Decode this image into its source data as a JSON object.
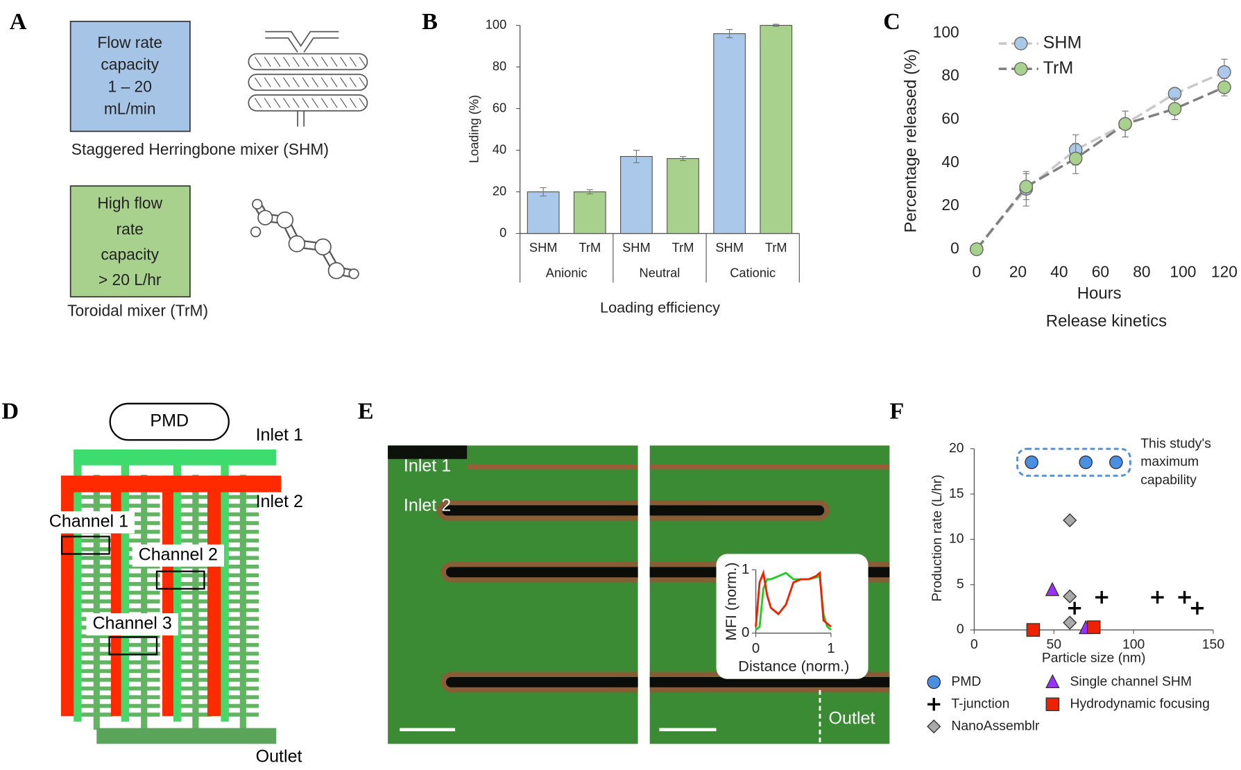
{
  "panel_labels": [
    "A",
    "B",
    "C",
    "D",
    "E",
    "F"
  ],
  "panel_a": {
    "mixers": [
      {
        "box_lines": [
          "Flow rate",
          "capacity",
          "1 – 20",
          "mL/min"
        ],
        "caption": "Staggered Herringbone mixer (SHM)"
      },
      {
        "box_lines": [
          "High flow",
          "rate",
          "capacity",
          "> 20 L/hr"
        ],
        "caption": "Toroidal mixer (TrM)"
      }
    ]
  },
  "panel_d": {
    "title": "PMD",
    "inlets": [
      "Inlet 1",
      "Inlet 2"
    ],
    "channels": [
      "Channel 1",
      "Channel 2",
      "Channel 3"
    ],
    "outlet": "Outlet"
  },
  "panel_e": {
    "inlets": [
      "Inlet 1",
      "Inlet 2"
    ],
    "outlet": "Outlet"
  },
  "chart_data": [
    {
      "type": "bar",
      "xlabel": "Loading efficiency",
      "ylabel": "Loading (%)",
      "categories": [
        "Anionic",
        "Neutral",
        "Cationic"
      ],
      "series": [
        {
          "name": "SHM",
          "color": "#a9c8ea",
          "values": [
            20,
            37,
            96
          ],
          "errors": [
            2,
            3,
            2
          ]
        },
        {
          "name": "TrM",
          "color": "#a9d18e",
          "values": [
            20,
            36,
            100
          ],
          "errors": [
            1,
            1,
            0.5
          ]
        }
      ],
      "ylim": [
        0,
        100
      ],
      "yticks": [
        0,
        20,
        40,
        60,
        80,
        100
      ]
    },
    {
      "type": "line",
      "title": "Release kinetics",
      "xlabel": "Hours",
      "ylabel": "Percentage released (%)",
      "x": [
        0,
        24,
        48,
        72,
        96,
        120
      ],
      "series": [
        {
          "name": "SHM",
          "color": "#a9c8ea",
          "line_color": "#c8c8c8",
          "values": [
            0,
            28,
            46,
            58,
            72,
            82
          ],
          "errors": [
            0,
            8,
            7,
            6,
            0,
            6
          ]
        },
        {
          "name": "TrM",
          "color": "#a9d18e",
          "line_color": "#7f7f7f",
          "values": [
            0,
            29,
            42,
            58,
            65,
            75
          ],
          "errors": [
            0,
            6,
            7,
            6,
            5,
            4
          ]
        }
      ],
      "xlim": [
        0,
        120
      ],
      "xticks": [
        0,
        20,
        40,
        60,
        80,
        100,
        120
      ],
      "ylim": [
        0,
        100
      ],
      "yticks": [
        0,
        20,
        40,
        60,
        80,
        100
      ],
      "legend": "upper-left"
    },
    {
      "type": "scatter",
      "xlabel": "Particle size (nm)",
      "ylabel": "Production rate (L/hr)",
      "annotation": [
        "This study's",
        "maximum",
        "capability"
      ],
      "series": [
        {
          "name": "PMD",
          "marker": "circle",
          "color": "#4a90e2",
          "x": [
            36,
            70,
            89
          ],
          "values": [
            18.5,
            18.5,
            18.5
          ]
        },
        {
          "name": "T-junction",
          "marker": "plus",
          "color": "#000000",
          "x": [
            63,
            80,
            115,
            132,
            140
          ],
          "values": [
            2.4,
            3.6,
            3.6,
            3.6,
            2.4
          ]
        },
        {
          "name": "NanoAssemblr",
          "marker": "diamond",
          "color": "#aaaaaa",
          "x": [
            60,
            60,
            60
          ],
          "values": [
            12.1,
            3.7,
            0.8
          ]
        },
        {
          "name": "Single channel SHM",
          "marker": "triangle",
          "color": "#9b30ff",
          "x": [
            49,
            70
          ],
          "values": [
            4.4,
            0.2
          ]
        },
        {
          "name": "Hydrodynamic focusing",
          "marker": "square",
          "color": "#ee2200",
          "x": [
            37,
            75
          ],
          "values": [
            0,
            0.3
          ]
        }
      ],
      "xlim": [
        0,
        150
      ],
      "xticks": [
        0,
        50,
        100,
        150
      ],
      "ylim": [
        0,
        20
      ],
      "yticks": [
        0,
        5,
        10,
        15,
        20
      ],
      "legend": "bottom"
    },
    {
      "type": "line",
      "xlabel": "Distance (norm.)",
      "ylabel": "MFI (norm.)",
      "x": [
        0,
        0.05,
        0.1,
        0.15,
        0.2,
        0.3,
        0.4,
        0.5,
        0.6,
        0.7,
        0.8,
        0.85,
        0.9,
        0.95,
        1
      ],
      "series": [
        {
          "color": "#22cc22",
          "values": [
            0.05,
            0.1,
            0.7,
            0.85,
            0.85,
            0.9,
            0.95,
            0.85,
            0.85,
            0.85,
            0.88,
            0.9,
            0.3,
            0.1,
            0.05
          ]
        },
        {
          "color": "#ee2200",
          "values": [
            0.1,
            0.8,
            0.95,
            0.6,
            0.4,
            0.3,
            0.45,
            0.8,
            0.85,
            0.85,
            0.9,
            0.95,
            0.2,
            0.15,
            0.1
          ]
        }
      ],
      "xlim": [
        0,
        1
      ],
      "xticks": [
        0,
        1
      ],
      "ylim": [
        0,
        1
      ],
      "yticks": [
        0,
        1
      ]
    }
  ]
}
